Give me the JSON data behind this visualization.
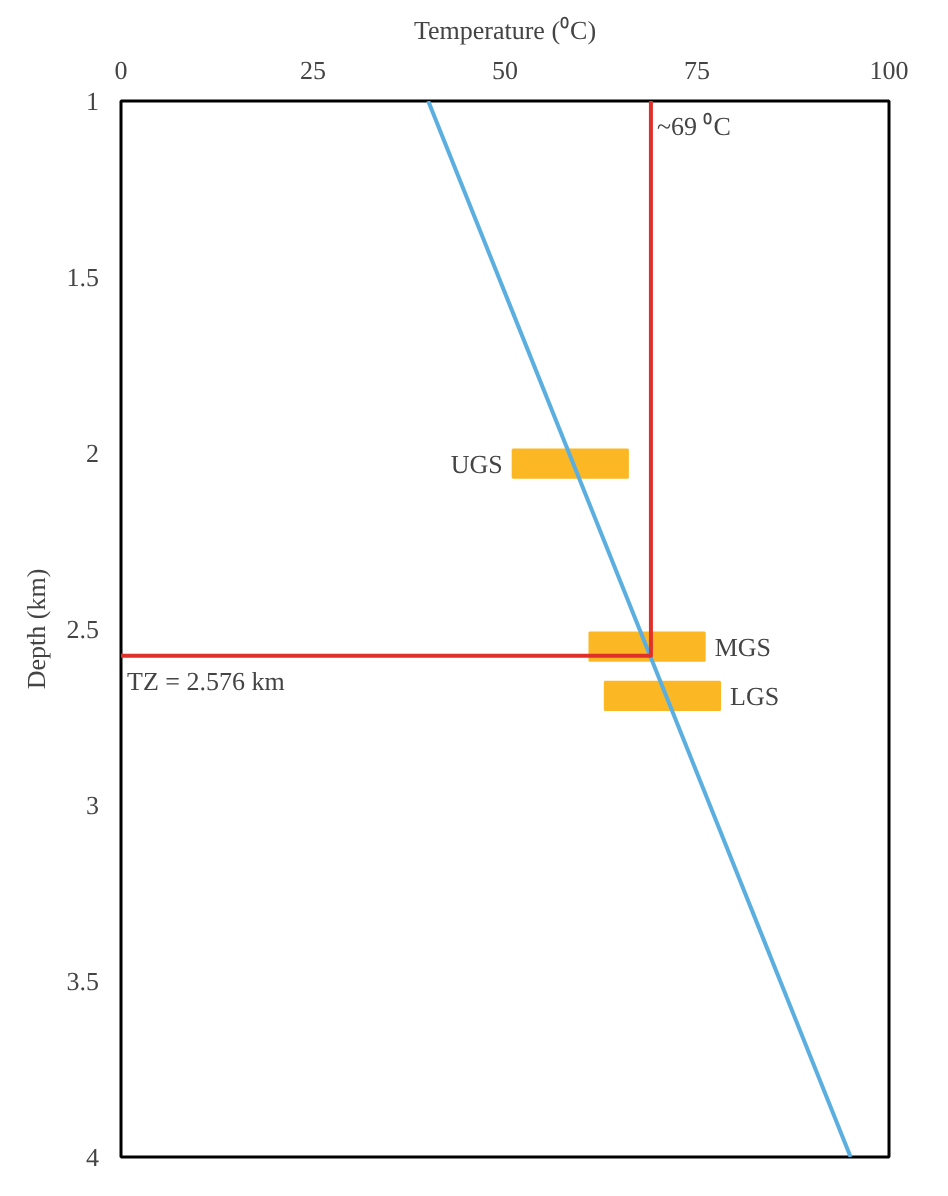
{
  "chart_data": {
    "type": "line",
    "orientation": "horizontal",
    "xlabel": "Temperature (⁰C)",
    "ylabel": "Depth (km)",
    "xlim": [
      0,
      100
    ],
    "xticks": [
      0,
      25,
      50,
      75,
      100
    ],
    "ylim": [
      4,
      1
    ],
    "yticks": [
      1,
      1.5,
      2,
      2.5,
      3,
      3.5,
      4
    ],
    "grid": false,
    "marker": "none",
    "line_style": "solid",
    "series": [
      {
        "type": "bar",
        "color": "#fbb824",
        "x": [
          2.03,
          2.55,
          2.69
        ],
        "base": [
          51,
          61,
          63
        ],
        "values": [
          15,
          15,
          15
        ],
        "value_labels": [
          "UGS",
          "MGS",
          "LGS"
        ]
      },
      {
        "color": "#5aaee0",
        "x": [
          1,
          4
        ],
        "values": [
          40,
          95
        ]
      },
      {
        "color": "#e0302a",
        "x": [
          2.576,
          2.576,
          1
        ],
        "values": [
          0,
          69,
          69
        ]
      }
    ],
    "annotations": [
      {
        "text": "~69 ⁰C",
        "x": 69,
        "y": 1
      },
      {
        "text": "TZ = 2.576 km",
        "x": 0,
        "y": 2.576
      }
    ]
  }
}
